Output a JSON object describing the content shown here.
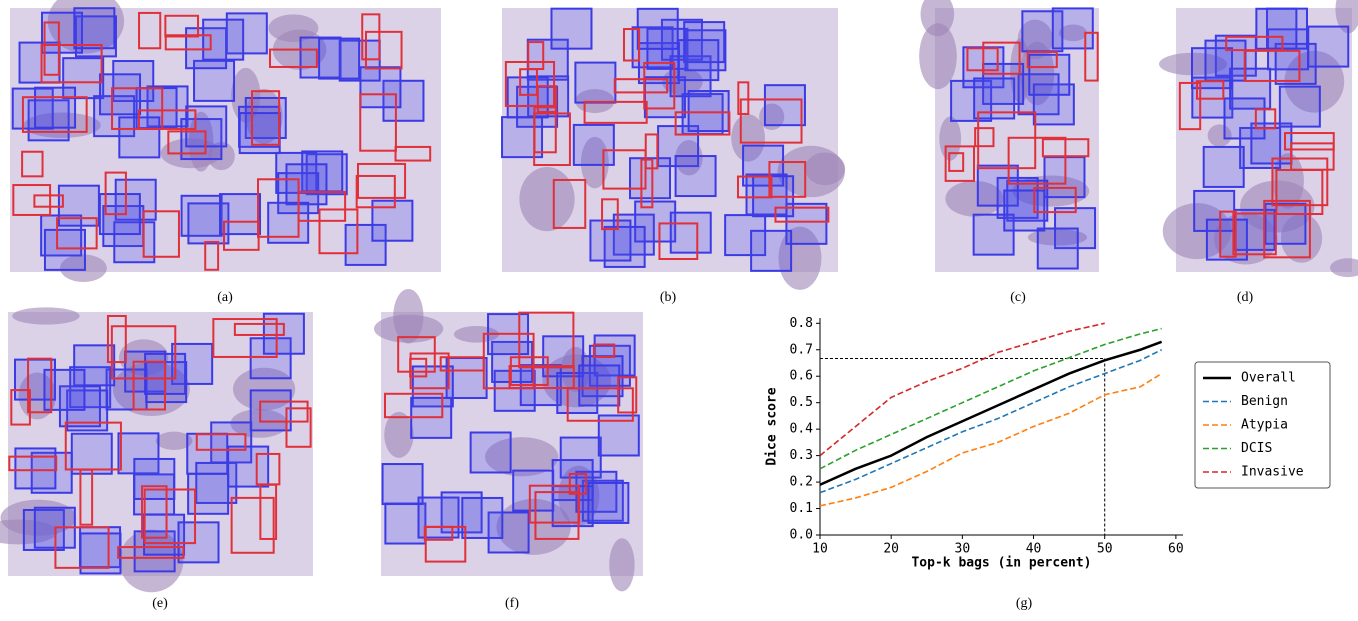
{
  "panels": [
    "(a)",
    "(b)",
    "(c)",
    "(d)",
    "(e)",
    "(f)",
    "(g)"
  ],
  "chart_data": {
    "type": "line",
    "x_label": "Top-k bags (in percent)",
    "y_label": "Dice score",
    "x": [
      10,
      15,
      20,
      25,
      30,
      35,
      40,
      45,
      50,
      55,
      58
    ],
    "series": [
      {
        "name": "Overall",
        "color": "#000000",
        "values": [
          0.19,
          0.25,
          0.3,
          0.37,
          0.43,
          0.49,
          0.55,
          0.61,
          0.66,
          0.7,
          0.73
        ]
      },
      {
        "name": "Benign",
        "color": "#1f77b4",
        "values": [
          0.16,
          0.21,
          0.27,
          0.33,
          0.39,
          0.44,
          0.5,
          0.56,
          0.61,
          0.66,
          0.7
        ]
      },
      {
        "name": "Atypia",
        "color": "#ff7f0e",
        "values": [
          0.11,
          0.14,
          0.18,
          0.24,
          0.31,
          0.35,
          0.41,
          0.46,
          0.53,
          0.56,
          0.61
        ]
      },
      {
        "name": "DCIS",
        "color": "#2ca02c",
        "values": [
          0.25,
          0.32,
          0.38,
          0.44,
          0.5,
          0.56,
          0.62,
          0.67,
          0.72,
          0.76,
          0.78
        ]
      },
      {
        "name": "Invasive",
        "color": "#d62728",
        "values": [
          0.3,
          0.41,
          0.52,
          0.58,
          0.63,
          0.69,
          0.73,
          0.77,
          0.8,
          null,
          null
        ]
      }
    ],
    "xlim": [
      10,
      61
    ],
    "xticks": [
      10,
      20,
      30,
      40,
      50,
      60
    ],
    "ylim": [
      0,
      0.82
    ],
    "yticks": [
      {
        "value": 0,
        "label": "0.0"
      },
      0.1,
      0.2,
      0.3,
      0.4,
      0.5,
      0.6,
      0.7,
      0.8
    ],
    "reference": {
      "x": 50,
      "y": 0.667
    }
  }
}
